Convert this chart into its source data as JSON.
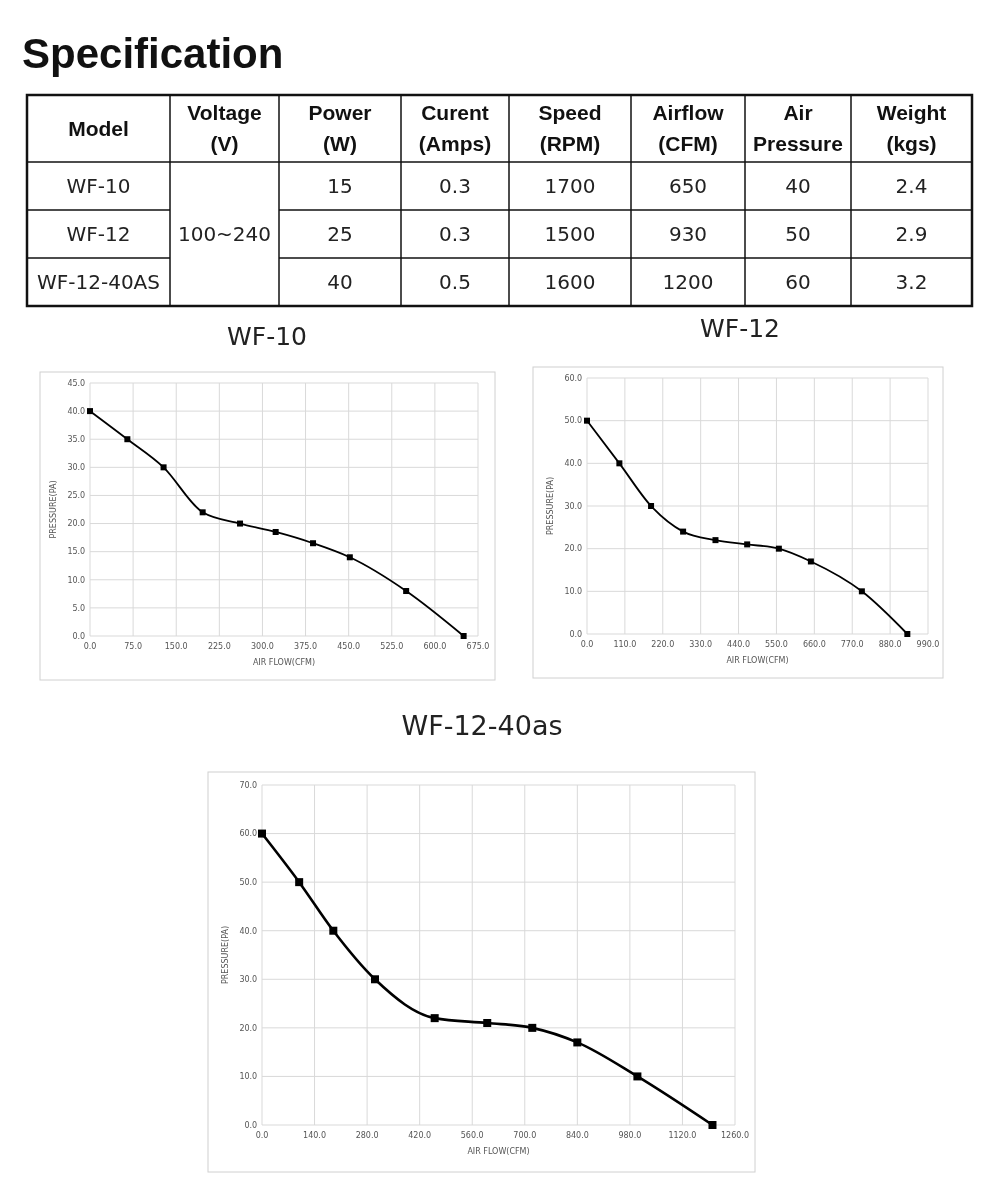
{
  "chart_data": [
    {
      "type": "other",
      "title": "Specification",
      "categories": [
        "Model",
        "Voltage (V)",
        "Power (W)",
        "Curent (Amps)",
        "Speed (RPM)",
        "Airflow (CFM)",
        "Air Pressure",
        "Weight (kgs)"
      ],
      "cell_labels": [
        [
          "WF-10",
          "100~240",
          "15",
          "0.3",
          "1700",
          "650",
          "40",
          "2.4"
        ],
        [
          "WF-12",
          null,
          "25",
          "0.3",
          "1500",
          "930",
          "50",
          "2.9"
        ],
        [
          "WF-12-40AS",
          null,
          "40",
          "0.5",
          "1600",
          "1200",
          "60",
          "3.2"
        ]
      ]
    },
    {
      "type": "line",
      "title": "WF-10",
      "xlabel": "AIR FLOW(CFM)",
      "ylabel": "PRESSURE(PA)",
      "grid": true,
      "marker": "square",
      "line_style": "solid",
      "xlim": [
        0,
        675
      ],
      "xticks": [
        {
          "value": 0,
          "label": "0.0"
        },
        {
          "value": 75,
          "label": "75.0"
        },
        {
          "value": 150,
          "label": "150.0"
        },
        {
          "value": 225,
          "label": "225.0"
        },
        {
          "value": 300,
          "label": "300.0"
        },
        {
          "value": 375,
          "label": "375.0"
        },
        {
          "value": 450,
          "label": "450.0"
        },
        {
          "value": 525,
          "label": "525.0"
        },
        {
          "value": 600,
          "label": "600.0"
        },
        {
          "value": 675,
          "label": "675.0"
        }
      ],
      "ylim": [
        0,
        45
      ],
      "yticks": [
        {
          "value": 0,
          "label": "0.0"
        },
        {
          "value": 5,
          "label": "5.0"
        },
        {
          "value": 10,
          "label": "10.0"
        },
        {
          "value": 15,
          "label": "15.0"
        },
        {
          "value": 20,
          "label": "20.0"
        },
        {
          "value": 25,
          "label": "25.0"
        },
        {
          "value": 30,
          "label": "30.0"
        },
        {
          "value": 35,
          "label": "35.0"
        },
        {
          "value": 40,
          "label": "40.0"
        },
        {
          "value": 45,
          "label": "45.0"
        }
      ],
      "x": [
        0,
        65,
        128,
        196,
        261,
        323,
        388,
        452,
        550,
        650
      ],
      "series": [
        {
          "color": "#000000",
          "values": [
            40,
            35,
            30,
            22,
            20,
            18.5,
            16.5,
            14,
            8,
            0
          ]
        }
      ]
    },
    {
      "type": "line",
      "title": "WF-12",
      "xlabel": "AIR FLOW(CFM)",
      "ylabel": "PRESSURE(PA)",
      "grid": true,
      "marker": "square",
      "line_style": "solid",
      "xlim": [
        0,
        990
      ],
      "xticks": [
        {
          "value": 0,
          "label": "0.0"
        },
        {
          "value": 110,
          "label": "110.0"
        },
        {
          "value": 220,
          "label": "220.0"
        },
        {
          "value": 330,
          "label": "330.0"
        },
        {
          "value": 440,
          "label": "440.0"
        },
        {
          "value": 550,
          "label": "550.0"
        },
        {
          "value": 660,
          "label": "660.0"
        },
        {
          "value": 770,
          "label": "770.0"
        },
        {
          "value": 880,
          "label": "880.0"
        },
        {
          "value": 990,
          "label": "990.0"
        }
      ],
      "ylim": [
        0,
        60
      ],
      "yticks": [
        {
          "value": 0,
          "label": "0.0"
        },
        {
          "value": 10,
          "label": "10.0"
        },
        {
          "value": 20,
          "label": "20.0"
        },
        {
          "value": 30,
          "label": "30.0"
        },
        {
          "value": 40,
          "label": "40.0"
        },
        {
          "value": 50,
          "label": "50.0"
        },
        {
          "value": 60,
          "label": "60.0"
        }
      ],
      "x": [
        0,
        94,
        186,
        279,
        373,
        465,
        557,
        650,
        798,
        930
      ],
      "series": [
        {
          "color": "#000000",
          "values": [
            50,
            40,
            30,
            24,
            22,
            21,
            20,
            17,
            10,
            0
          ]
        }
      ]
    },
    {
      "type": "line",
      "title": "WF-12-40as",
      "xlabel": "AIR FLOW(CFM)",
      "ylabel": "PRESSURE(PA)",
      "grid": true,
      "marker": "square",
      "line_style": "solid",
      "xlim": [
        0,
        1260
      ],
      "xticks": [
        {
          "value": 0,
          "label": "0.0"
        },
        {
          "value": 140,
          "label": "140.0"
        },
        {
          "value": 280,
          "label": "280.0"
        },
        {
          "value": 420,
          "label": "420.0"
        },
        {
          "value": 560,
          "label": "560.0"
        },
        {
          "value": 700,
          "label": "700.0"
        },
        {
          "value": 840,
          "label": "840.0"
        },
        {
          "value": 980,
          "label": "980.0"
        },
        {
          "value": 1120,
          "label": "1120.0"
        },
        {
          "value": 1260,
          "label": "1260.0"
        }
      ],
      "ylim": [
        0,
        70
      ],
      "yticks": [
        {
          "value": 0,
          "label": "0.0"
        },
        {
          "value": 10,
          "label": "10.0"
        },
        {
          "value": 20,
          "label": "20.0"
        },
        {
          "value": 30,
          "label": "30.0"
        },
        {
          "value": 40,
          "label": "40.0"
        },
        {
          "value": 50,
          "label": "50.0"
        },
        {
          "value": 60,
          "label": "60.0"
        },
        {
          "value": 70,
          "label": "70.0"
        }
      ],
      "x": [
        0,
        99,
        190,
        301,
        460,
        600,
        720,
        840,
        1000,
        1200
      ],
      "series": [
        {
          "color": "#000000",
          "values": [
            60,
            50,
            40,
            30,
            22,
            21,
            20,
            17,
            10,
            0
          ]
        }
      ]
    }
  ]
}
